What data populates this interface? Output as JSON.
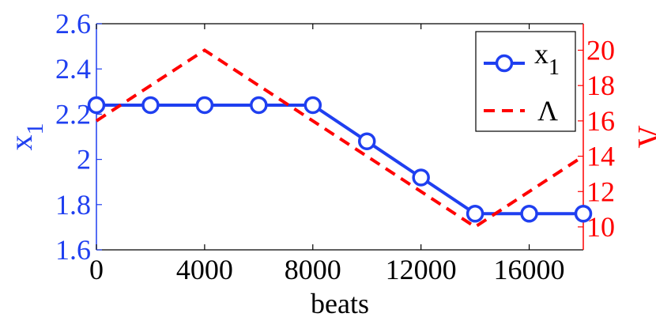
{
  "chart_data": {
    "type": "line",
    "xlabel": "beats",
    "ylabel_left": "x",
    "ylabel_left_sub": "1",
    "ylabel_right": "Λ",
    "xlim": [
      0,
      18000
    ],
    "ylim_left": [
      1.6,
      2.6
    ],
    "ylim_right": [
      8.7,
      21.5
    ],
    "x_ticks": [
      0,
      4000,
      8000,
      12000,
      16000
    ],
    "x_tick_labels": [
      "0",
      "4000",
      "8000",
      "12000",
      "16000"
    ],
    "y_left_ticks": [
      1.6,
      1.8,
      2.0,
      2.2,
      2.4,
      2.6
    ],
    "y_left_tick_labels": [
      "1.6",
      "1.8",
      "2",
      "2.2",
      "2.4",
      "2.6"
    ],
    "y_right_ticks": [
      10,
      12,
      14,
      16,
      18,
      20
    ],
    "y_right_tick_labels": [
      "10",
      "12",
      "14",
      "16",
      "18",
      "20"
    ],
    "grid": false,
    "legend_position": "top-right",
    "series": [
      {
        "name": "x",
        "name_sub": "1",
        "axis": "left",
        "color": "#1f3ff0",
        "style": "solid-circle-markers",
        "x": [
          0,
          2000,
          4000,
          6000,
          8000,
          10000,
          12000,
          14000,
          16000,
          18000
        ],
        "y": [
          2.24,
          2.24,
          2.24,
          2.24,
          2.24,
          2.08,
          1.92,
          1.76,
          1.76,
          1.76
        ]
      },
      {
        "name": "Λ",
        "axis": "right",
        "color": "#ff0000",
        "style": "dashed",
        "x": [
          0,
          4000,
          14000,
          18000
        ],
        "y": [
          16,
          20,
          10,
          14
        ]
      }
    ]
  }
}
